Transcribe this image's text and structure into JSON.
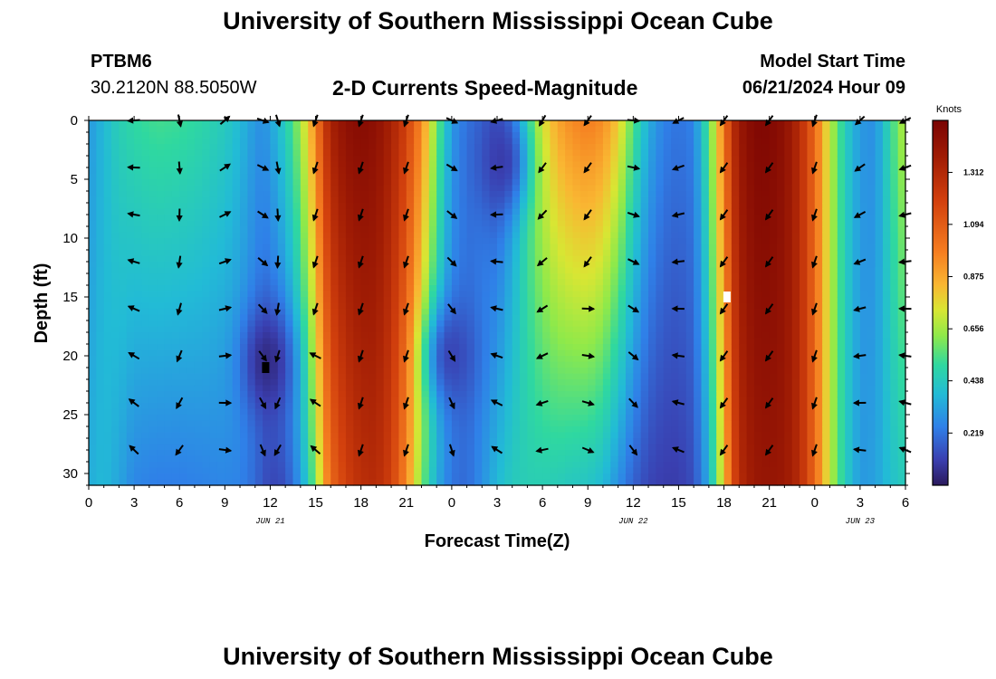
{
  "header": {
    "title": "University of Southern Mississippi Ocean Cube",
    "station": "PTBM6",
    "coords": "30.2120N  88.5050W",
    "subtitle": "2-D Currents Speed-Magnitude",
    "model_start_label": "Model Start Time",
    "model_start_value": "06/21/2024 Hour 09"
  },
  "footer": {
    "title": "University of Southern Mississippi Ocean Cube"
  },
  "chart_data": {
    "type": "heatmap",
    "title": "2-D Currents Speed-Magnitude",
    "xlabel": "Forecast Time(Z)",
    "ylabel": "Depth (ft)",
    "xlim": [
      0,
      54
    ],
    "ylim": [
      31,
      0
    ],
    "x_ticks": [
      0,
      3,
      6,
      9,
      12,
      15,
      18,
      21,
      24,
      27,
      30,
      33,
      36,
      39,
      42,
      45,
      48,
      51,
      54
    ],
    "x_tick_labels": [
      "0",
      "3",
      "6",
      "9",
      "12",
      "15",
      "18",
      "21",
      "0",
      "3",
      "6",
      "9",
      "12",
      "15",
      "18",
      "21",
      "0",
      "3",
      "6"
    ],
    "y_ticks": [
      0,
      5,
      10,
      15,
      20,
      25,
      30
    ],
    "y_tick_labels": [
      "0",
      "5",
      "10",
      "15",
      "20",
      "25",
      "30"
    ],
    "date_labels": [
      {
        "x": 12,
        "text": "JUN 21"
      },
      {
        "x": 36,
        "text": "JUN 22"
      },
      {
        "x": 51,
        "text": "JUN 23"
      }
    ],
    "colorbar": {
      "unit": "Knots",
      "min": 0,
      "max": 1.53,
      "ticks": [
        0.219,
        0.438,
        0.656,
        0.875,
        1.094,
        1.312
      ],
      "tick_labels": [
        "0.219",
        "0.438",
        "0.656",
        "0.875",
        "1.094",
        "1.312"
      ]
    },
    "speed_profile": {
      "hours": [
        0,
        1,
        2,
        3,
        4.5,
        6,
        7.5,
        9,
        10,
        11,
        11.5,
        12,
        13,
        14,
        15,
        15.5,
        16,
        17,
        18,
        19,
        20,
        21,
        22,
        23,
        24,
        25,
        26,
        27,
        28,
        29,
        30,
        31,
        32,
        33,
        34,
        35,
        36,
        37,
        38,
        39,
        40,
        41,
        42,
        42.5,
        43,
        44,
        45,
        46,
        47,
        48,
        49,
        50,
        51,
        52,
        53,
        54
      ],
      "top": [
        0.3,
        0.38,
        0.46,
        0.5,
        0.53,
        0.52,
        0.49,
        0.44,
        0.38,
        0.3,
        0.28,
        0.32,
        0.45,
        0.65,
        0.95,
        1.2,
        1.35,
        1.45,
        1.48,
        1.45,
        1.35,
        1.2,
        0.95,
        0.6,
        0.3,
        0.22,
        0.2,
        0.15,
        0.3,
        0.55,
        0.75,
        0.88,
        0.95,
        0.98,
        0.94,
        0.8,
        0.55,
        0.35,
        0.25,
        0.22,
        0.25,
        0.55,
        1.0,
        1.25,
        1.4,
        1.5,
        1.5,
        1.45,
        1.3,
        1.05,
        0.7,
        0.45,
        0.3,
        0.28,
        0.5,
        0.7
      ],
      "bottom": [
        0.35,
        0.38,
        0.33,
        0.26,
        0.24,
        0.24,
        0.25,
        0.26,
        0.25,
        0.2,
        0.15,
        0.12,
        0.14,
        0.3,
        0.6,
        0.85,
        1.05,
        1.2,
        1.28,
        1.3,
        1.2,
        0.95,
        0.6,
        0.35,
        0.22,
        0.2,
        0.28,
        0.38,
        0.44,
        0.46,
        0.46,
        0.45,
        0.43,
        0.42,
        0.38,
        0.28,
        0.18,
        0.12,
        0.1,
        0.1,
        0.14,
        0.35,
        0.8,
        1.1,
        1.3,
        1.4,
        1.42,
        1.4,
        1.3,
        1.05,
        0.7,
        0.45,
        0.3,
        0.32,
        0.4,
        0.45
      ]
    },
    "slow_spots": [
      {
        "hour": 11.8,
        "depth": 20.5,
        "speed": 0.05
      },
      {
        "hour": 27.3,
        "depth": 3.5,
        "speed": 0.1
      },
      {
        "hour": 24.0,
        "depth": 20.0,
        "speed": 0.12
      }
    ],
    "arrow_depths": [
      0,
      4,
      8,
      12,
      16,
      20,
      24,
      28
    ],
    "arrow_hours": [
      3,
      6,
      9,
      11.5,
      12.5,
      15,
      18,
      21,
      24,
      27,
      30,
      33,
      36,
      39,
      42,
      45,
      48,
      51,
      54
    ],
    "markers": [
      {
        "hour": 11.7,
        "depth": 21,
        "color": "#000000"
      },
      {
        "hour": 42.2,
        "depth": 15,
        "color": "#ffffff"
      }
    ]
  }
}
